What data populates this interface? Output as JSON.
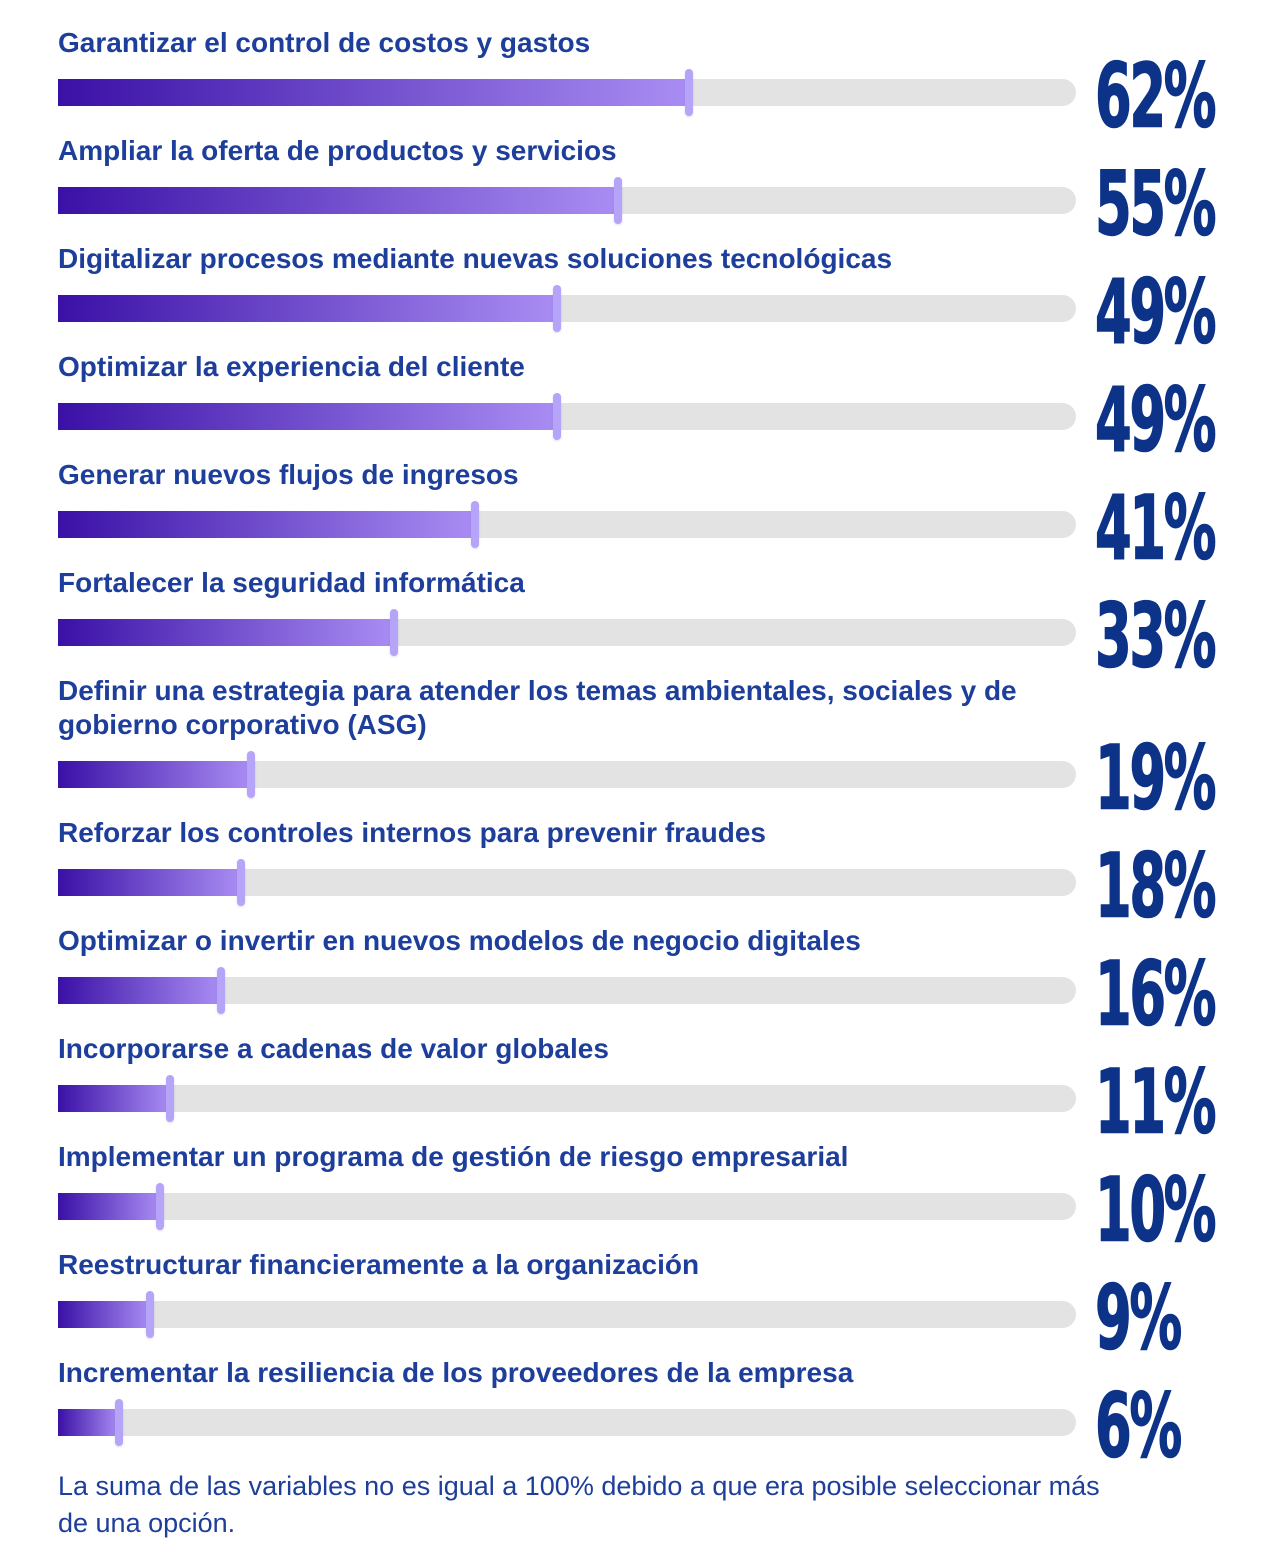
{
  "chart_data": {
    "type": "bar",
    "orientation": "horizontal",
    "unit": "%",
    "xlim": [
      0,
      100
    ],
    "grid": false,
    "legend": false,
    "categories": [
      "Garantizar el control de costos y gastos",
      "Ampliar la oferta de productos y servicios",
      "Digitalizar procesos mediante nuevas soluciones tecnológicas",
      "Optimizar la experiencia del cliente",
      "Generar nuevos flujos de ingresos",
      "Fortalecer la seguridad informática",
      "Definir una estrategia para atender los temas ambientales, sociales y de gobierno corporativo (ASG)",
      "Reforzar los controles internos para prevenir fraudes",
      "Optimizar o invertir en nuevos modelos de negocio digitales",
      "Incorporarse a cadenas de valor globales",
      "Implementar un programa de gestión de riesgo empresarial",
      "Reestructurar financieramente a la organización",
      "Incrementar la resiliencia de los proveedores de la empresa"
    ],
    "values": [
      62,
      55,
      49,
      49,
      41,
      33,
      19,
      18,
      16,
      11,
      10,
      9,
      6
    ],
    "items": [
      {
        "label": "Garantizar el control de costos y gastos",
        "value": 62,
        "value_label": "62%"
      },
      {
        "label": "Ampliar la oferta de productos y servicios",
        "value": 55,
        "value_label": "55%"
      },
      {
        "label": "Digitalizar procesos mediante nuevas soluciones tecnológicas",
        "value": 49,
        "value_label": "49%"
      },
      {
        "label": "Optimizar la experiencia del cliente",
        "value": 49,
        "value_label": "49%"
      },
      {
        "label": "Generar nuevos flujos de ingresos",
        "value": 41,
        "value_label": "41%"
      },
      {
        "label": "Fortalecer la seguridad informática",
        "value": 33,
        "value_label": "33%"
      },
      {
        "label": "Definir una estrategia para atender los temas ambientales, sociales y de gobierno corporativo (ASG)",
        "value": 19,
        "value_label": "19%"
      },
      {
        "label": "Reforzar los controles internos para prevenir fraudes",
        "value": 18,
        "value_label": "18%"
      },
      {
        "label": "Optimizar o invertir en nuevos modelos de negocio digitales",
        "value": 16,
        "value_label": "16%"
      },
      {
        "label": "Incorporarse a cadenas de valor globales",
        "value": 11,
        "value_label": "11%"
      },
      {
        "label": "Implementar un programa de gestión de riesgo empresarial",
        "value": 10,
        "value_label": "10%"
      },
      {
        "label": "Reestructurar financieramente a la organización",
        "value": 9,
        "value_label": "9%"
      },
      {
        "label": "Incrementar la resiliencia de los proveedores de la empresa",
        "value": 6,
        "value_label": "6%"
      }
    ],
    "footnote": "La suma de las variables no es igual a 100% debido a que era posible seleccionar más de una opción."
  },
  "colors": {
    "label_text": "#1d3e9b",
    "value_text": "#0d3389",
    "bar_gradient_start": "#3a10a6",
    "bar_gradient_end": "#a98df3",
    "bar_cap": "#b6a4f8",
    "track": "#e3e3e3"
  }
}
